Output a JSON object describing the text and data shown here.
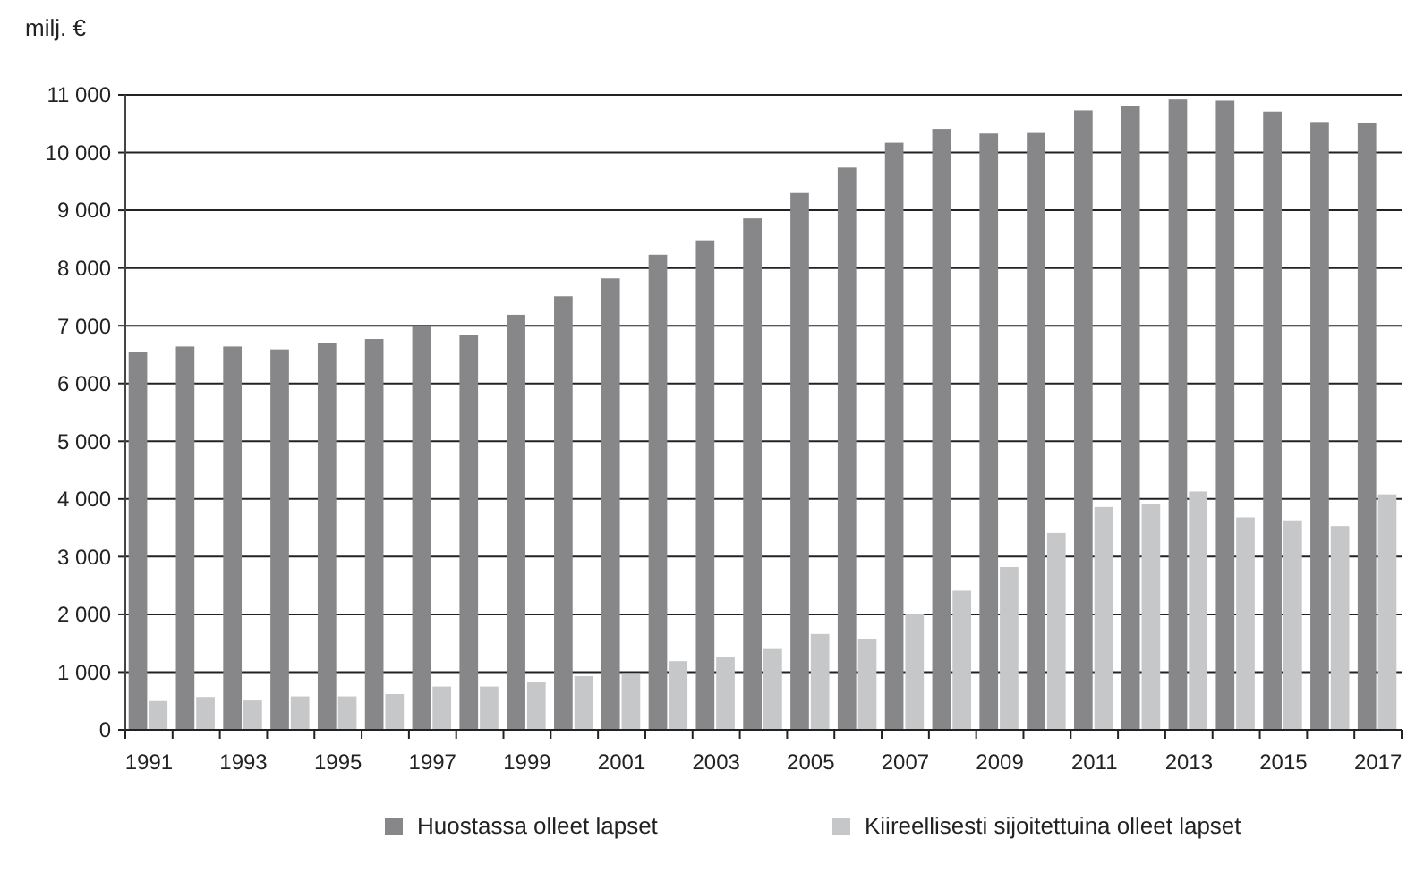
{
  "chart_data": {
    "type": "bar",
    "ylabel": "milj. €",
    "categories": [
      "1991",
      null,
      "1993",
      null,
      "1995",
      null,
      "1997",
      null,
      "1999",
      null,
      "2001",
      null,
      "2003",
      null,
      "2005",
      null,
      "2007",
      null,
      "2009",
      null,
      "2011",
      null,
      "2013",
      null,
      "2015",
      null,
      "2017"
    ],
    "series": [
      {
        "name": "Huostassa olleet lapset",
        "color": "#87878a",
        "values": [
          6540,
          6640,
          6640,
          6590,
          6700,
          6770,
          7000,
          6840,
          7190,
          7510,
          7820,
          8230,
          8480,
          8860,
          9300,
          9740,
          10170,
          10410,
          10330,
          10340,
          10730,
          10810,
          10920,
          10900,
          10710,
          10530,
          10520
        ]
      },
      {
        "name": "Kiireellisesti sijoitettuina olleet lapset",
        "color": "#c6c7c9",
        "values": [
          500,
          570,
          510,
          580,
          580,
          620,
          750,
          750,
          830,
          930,
          980,
          1190,
          1260,
          1400,
          1660,
          1580,
          2010,
          2410,
          2820,
          3410,
          3860,
          3920,
          4130,
          3680,
          3630,
          3530,
          4080
        ]
      }
    ],
    "ylim": [
      0,
      11000
    ],
    "yticks": [
      0,
      {
        "value": 1000,
        "label": "1 000"
      },
      {
        "value": 2000,
        "label": "2 000"
      },
      {
        "value": 3000,
        "label": "3 000"
      },
      {
        "value": 4000,
        "label": "4 000"
      },
      {
        "value": 5000,
        "label": "5 000"
      },
      {
        "value": 6000,
        "label": "6 000"
      },
      {
        "value": 7000,
        "label": "7 000"
      },
      {
        "value": 8000,
        "label": "8 000"
      },
      {
        "value": 9000,
        "label": "9 000"
      },
      {
        "value": 10000,
        "label": "10 000"
      },
      {
        "value": 11000,
        "label": "11 000"
      }
    ],
    "grid": "y",
    "legend": "bottom"
  }
}
